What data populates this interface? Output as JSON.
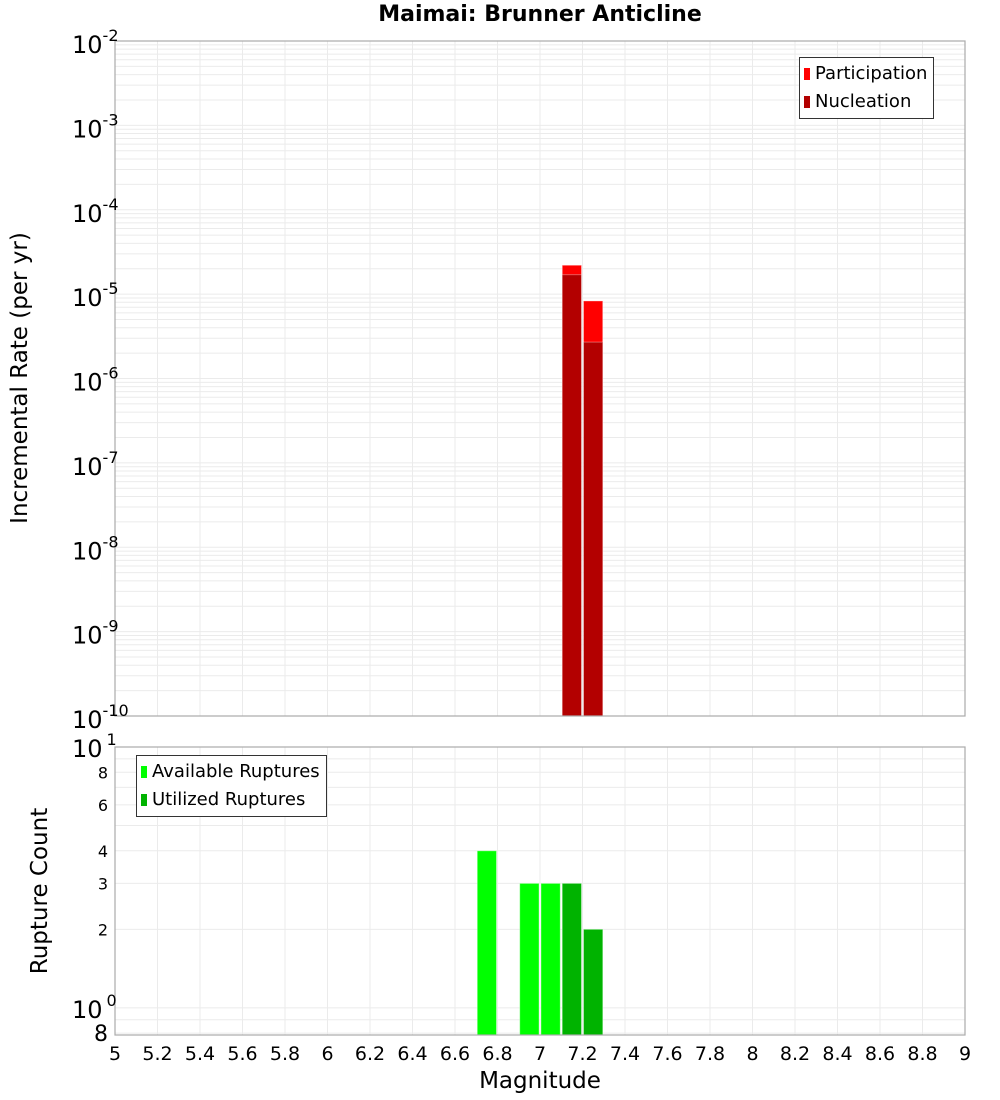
{
  "title": "Maimai: Brunner Anticline",
  "top_panel": {
    "ylabel": "Incremental Rate (per yr)",
    "legend": [
      {
        "label": "Participation",
        "color": "#ff0000"
      },
      {
        "label": "Nucleation",
        "color": "#b30000"
      }
    ],
    "y_ticks": [
      {
        "base": "10",
        "exp": "-2"
      },
      {
        "base": "10",
        "exp": "-3"
      },
      {
        "base": "10",
        "exp": "-4"
      },
      {
        "base": "10",
        "exp": "-5"
      },
      {
        "base": "10",
        "exp": "-6"
      },
      {
        "base": "10",
        "exp": "-7"
      },
      {
        "base": "10",
        "exp": "-8"
      },
      {
        "base": "10",
        "exp": "-9"
      },
      {
        "base": "10",
        "exp": "-10"
      }
    ]
  },
  "bottom_panel": {
    "ylabel": "Rupture Count",
    "legend": [
      {
        "label": "Available Ruptures",
        "color": "#00ff00"
      },
      {
        "label": "Utilized Ruptures",
        "color": "#00b300"
      }
    ],
    "y_ticks_major": [
      {
        "base": "10",
        "exp": "1"
      },
      {
        "base": "10",
        "exp": "0"
      }
    ],
    "y_ticks_minor": [
      "8",
      "6",
      "4",
      "3",
      "2",
      "8"
    ]
  },
  "xlabel": "Magnitude",
  "x_ticks": [
    "5",
    "5.2",
    "5.4",
    "5.6",
    "5.8",
    "6",
    "6.2",
    "6.4",
    "6.6",
    "6.8",
    "7",
    "7.2",
    "7.4",
    "7.6",
    "7.8",
    "8",
    "8.2",
    "8.4",
    "8.6",
    "8.8",
    "9"
  ],
  "chart_data": [
    {
      "type": "bar",
      "title": "Maimai: Brunner Anticline",
      "xlabel": "Magnitude",
      "ylabel": "Incremental Rate (per yr)",
      "yscale": "log",
      "xlim": [
        5,
        9
      ],
      "ylim": [
        1e-10,
        0.01
      ],
      "grid": true,
      "legend_position": "upper right",
      "bin_width": 0.1,
      "series": [
        {
          "name": "Participation",
          "color": "#ff0000",
          "x": [
            7.15,
            7.25
          ],
          "values": [
            2.2e-05,
            8.3e-06
          ]
        },
        {
          "name": "Nucleation",
          "color": "#b30000",
          "x": [
            7.15,
            7.25
          ],
          "values": [
            1.7e-05,
            2.7e-06
          ]
        }
      ]
    },
    {
      "type": "bar",
      "xlabel": "Magnitude",
      "ylabel": "Rupture Count",
      "yscale": "log",
      "xlim": [
        5,
        9
      ],
      "ylim": [
        0.8,
        10
      ],
      "grid": true,
      "legend_position": "upper left",
      "bin_width": 0.1,
      "series": [
        {
          "name": "Available Ruptures",
          "color": "#00ff00",
          "x": [
            6.75,
            6.95,
            7.05,
            7.15,
            7.25
          ],
          "values": [
            4,
            3,
            3,
            3,
            2
          ]
        },
        {
          "name": "Utilized Ruptures",
          "color": "#00b300",
          "x": [
            7.15,
            7.25
          ],
          "values": [
            3,
            2
          ]
        }
      ]
    }
  ]
}
